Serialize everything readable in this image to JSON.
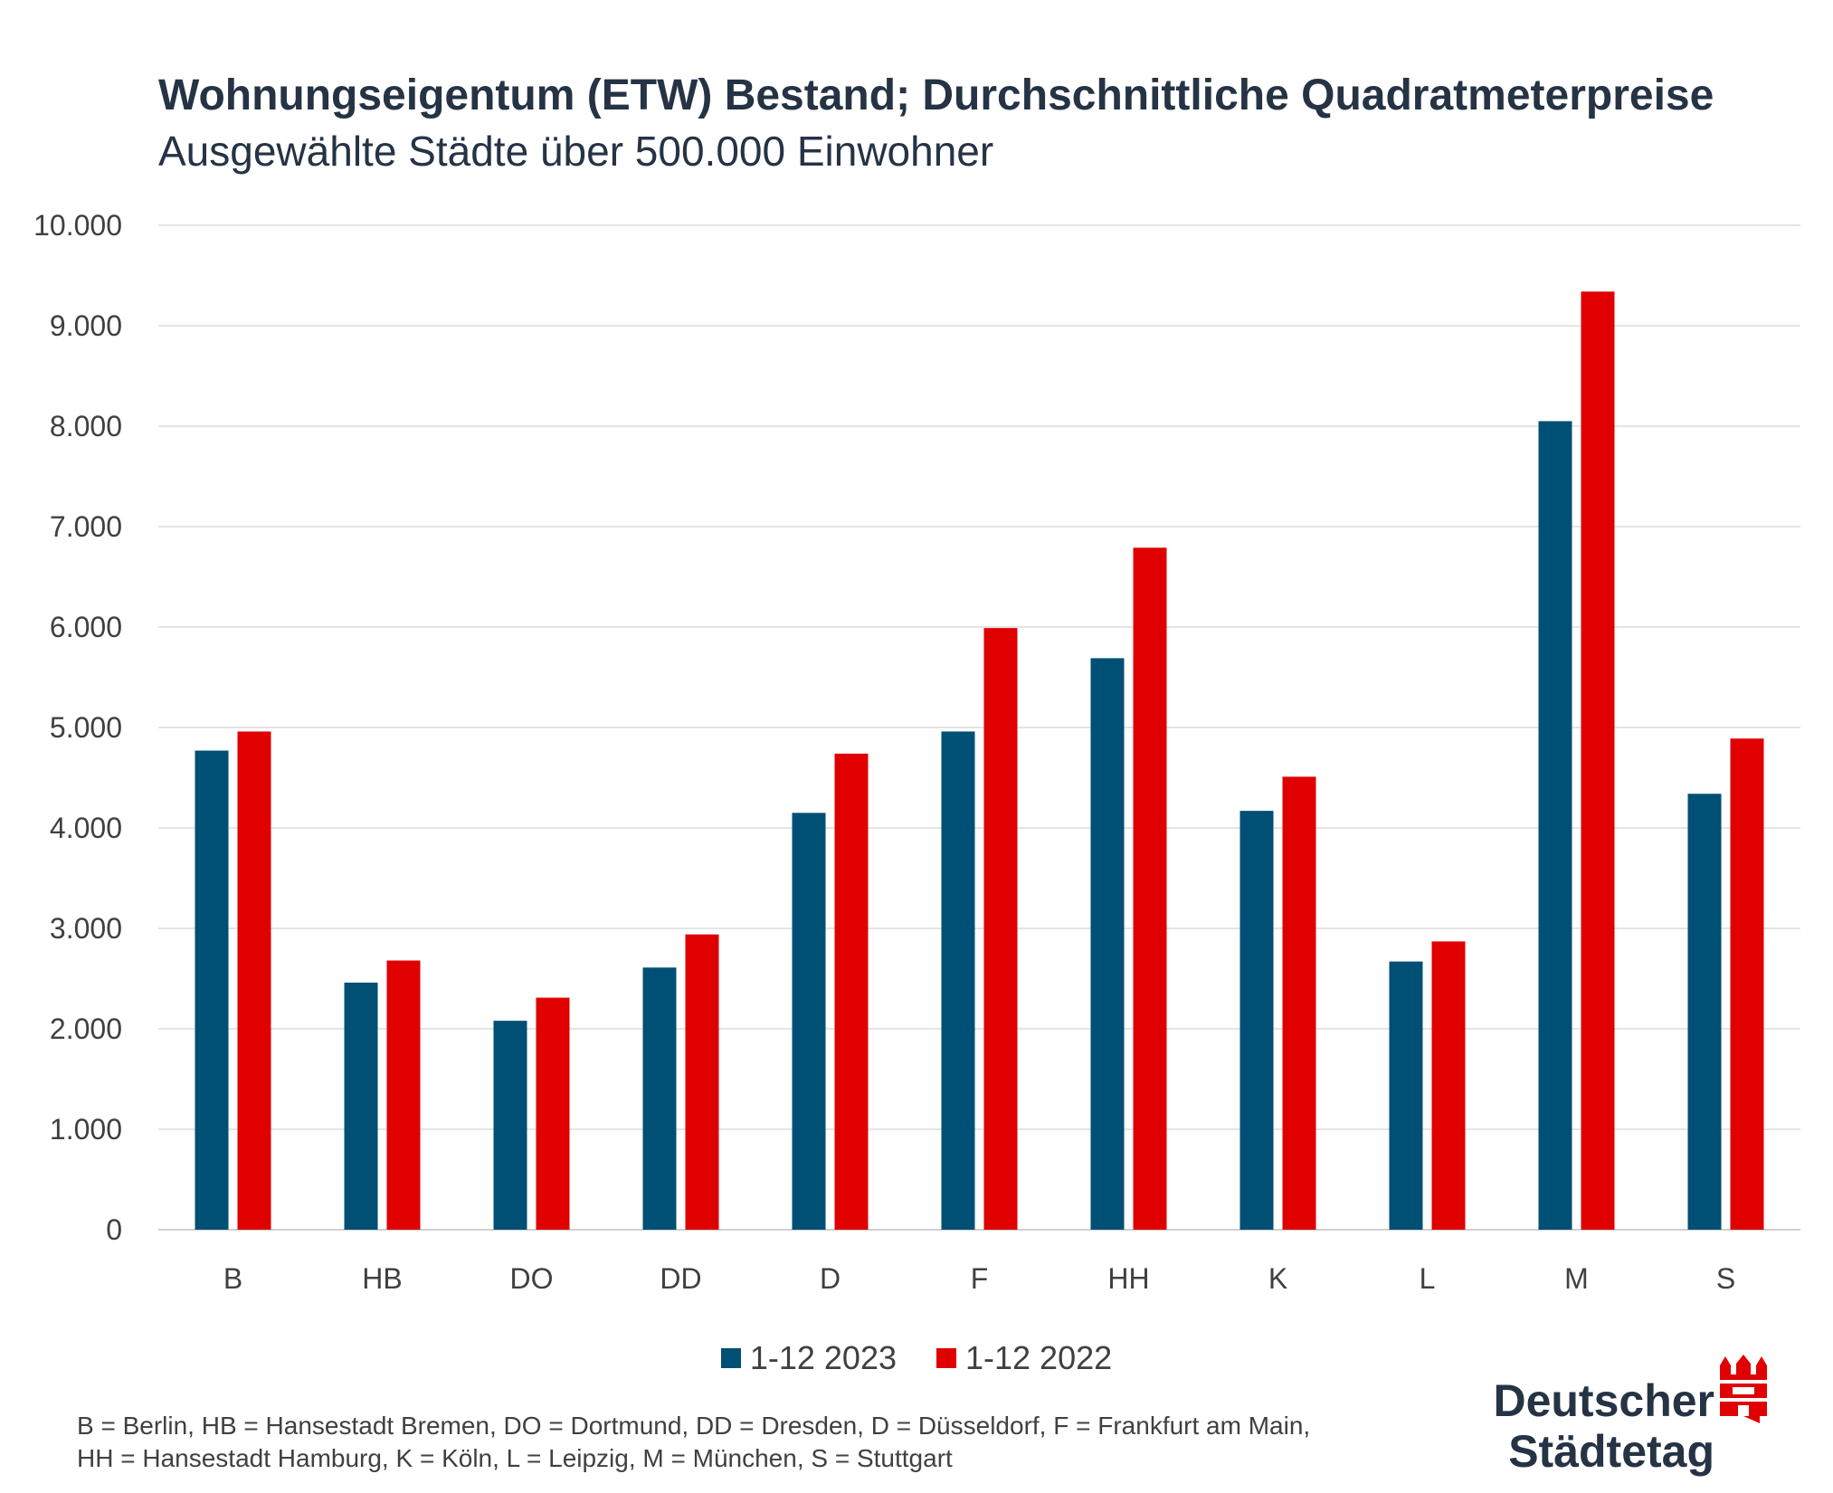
{
  "title": "Wohnungseigentum (ETW) Bestand; Durchschnittliche Quadratmeterpreise",
  "subtitle": "Ausgewählte Städte über 500.000 Einwohner",
  "colors": {
    "series_2023": "#004f74",
    "series_2022": "#e00000",
    "grid": "#e4e4e4",
    "text": "#253345"
  },
  "chart_data": {
    "type": "bar",
    "categories": [
      "B",
      "HB",
      "DO",
      "DD",
      "D",
      "F",
      "HH",
      "K",
      "L",
      "M",
      "S"
    ],
    "series": [
      {
        "name": "1-12 2023",
        "values": [
          4770,
          2460,
          2080,
          2610,
          4150,
          4960,
          5690,
          4170,
          2670,
          8050,
          4340
        ]
      },
      {
        "name": "1-12 2022",
        "values": [
          4960,
          2680,
          2310,
          2940,
          4740,
          5990,
          6790,
          4510,
          2870,
          9340,
          4890
        ]
      }
    ],
    "ylim": [
      0,
      10000
    ],
    "yticks": [
      "0",
      "1.000",
      "2.000",
      "3.000",
      "4.000",
      "5.000",
      "6.000",
      "7.000",
      "8.000",
      "9.000",
      "10.000"
    ],
    "grid": true,
    "legend": "bottom"
  },
  "legend": {
    "item1": "1-12 2023",
    "item2": "1-12 2022"
  },
  "footnote": {
    "line1": "B = Berlin, HB = Hansestadt Bremen, DO = Dortmund, DD = Dresden, D = Düsseldorf, F = Frankfurt am Main,",
    "line2": "HH = Hansestadt Hamburg, K = Köln, L = Leipzig, M = München, S = Stuttgart"
  },
  "logo": {
    "line1": "Deutscher",
    "line2": "Städtetag"
  }
}
